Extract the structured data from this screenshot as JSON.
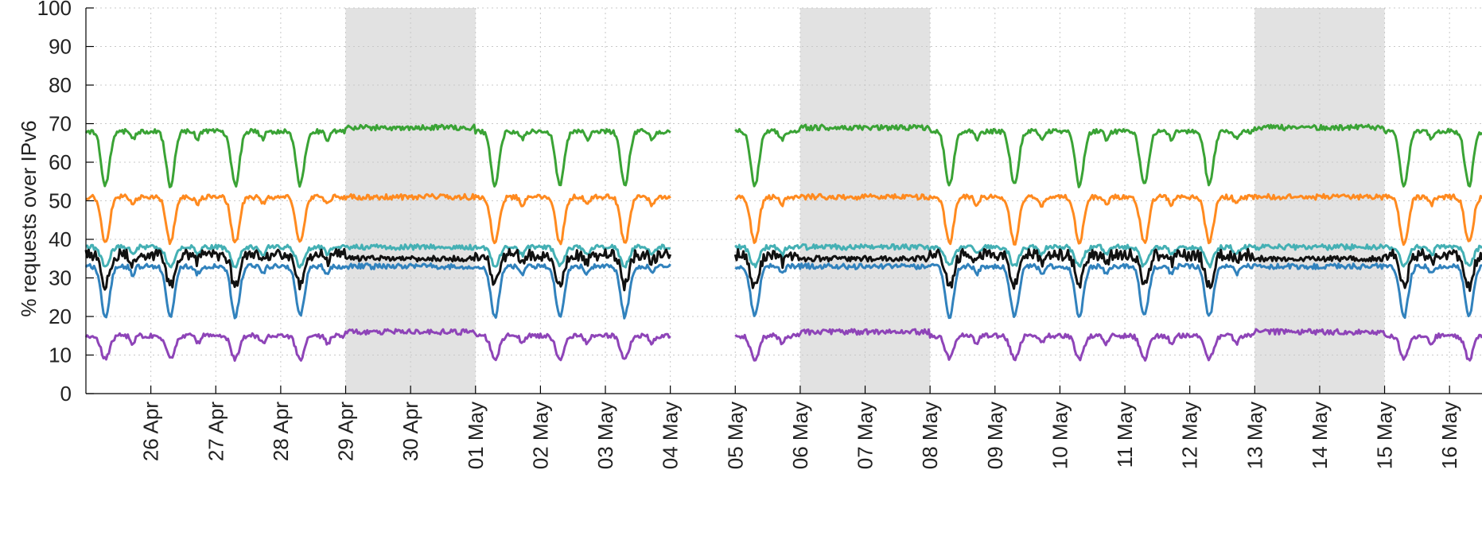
{
  "chart_data": {
    "type": "line",
    "title": "",
    "xlabel": "",
    "ylabel": "% requests over IPv6",
    "ylim": [
      0,
      100
    ],
    "xlim": [
      "2018-04-25",
      "2018-05-16T12:00"
    ],
    "yticks": [
      0,
      10,
      20,
      30,
      40,
      50,
      60,
      70,
      80,
      90,
      100
    ],
    "xticks": [
      "26 Apr",
      "27 Apr",
      "28 Apr",
      "29 Apr",
      "30 Apr",
      "01 May",
      "02 May",
      "03 May",
      "04 May",
      "05 May",
      "06 May",
      "07 May",
      "08 May",
      "09 May",
      "10 May",
      "11 May",
      "12 May",
      "13 May",
      "14 May",
      "15 May",
      "16 May"
    ],
    "grid": true,
    "gap": [
      "2018-05-04",
      "2018-05-05"
    ],
    "weekends": [
      [
        "2018-04-29",
        "2018-05-01"
      ],
      [
        "2018-05-06",
        "2018-05-08"
      ],
      [
        "2018-05-13",
        "2018-05-15"
      ]
    ],
    "colors": {
      "green": "#3aa335",
      "orange": "#ff8a1f",
      "teal": "#44b0b4",
      "black": "#111111",
      "blue": "#3182bd",
      "purple": "#8e44b8",
      "weekend": "#e2e2e2",
      "grid": "#c8c8c8"
    },
    "series": [
      {
        "color": "green",
        "weekday_peak": 68,
        "weekday_low": 54,
        "weekend_level": 69
      },
      {
        "color": "orange",
        "weekday_peak": 51,
        "weekday_low": 39,
        "weekend_level": 51
      },
      {
        "color": "teal",
        "weekday_peak": 38,
        "weekday_low": 33,
        "weekend_level": 38
      },
      {
        "color": "black",
        "weekday_peak": 36,
        "weekday_low": 28,
        "weekend_level": 35
      },
      {
        "color": "blue",
        "weekday_peak": 33,
        "weekday_low": 20,
        "weekend_level": 33
      },
      {
        "color": "purple",
        "weekday_peak": 15,
        "weekday_low": 9,
        "weekend_level": 16
      }
    ]
  }
}
